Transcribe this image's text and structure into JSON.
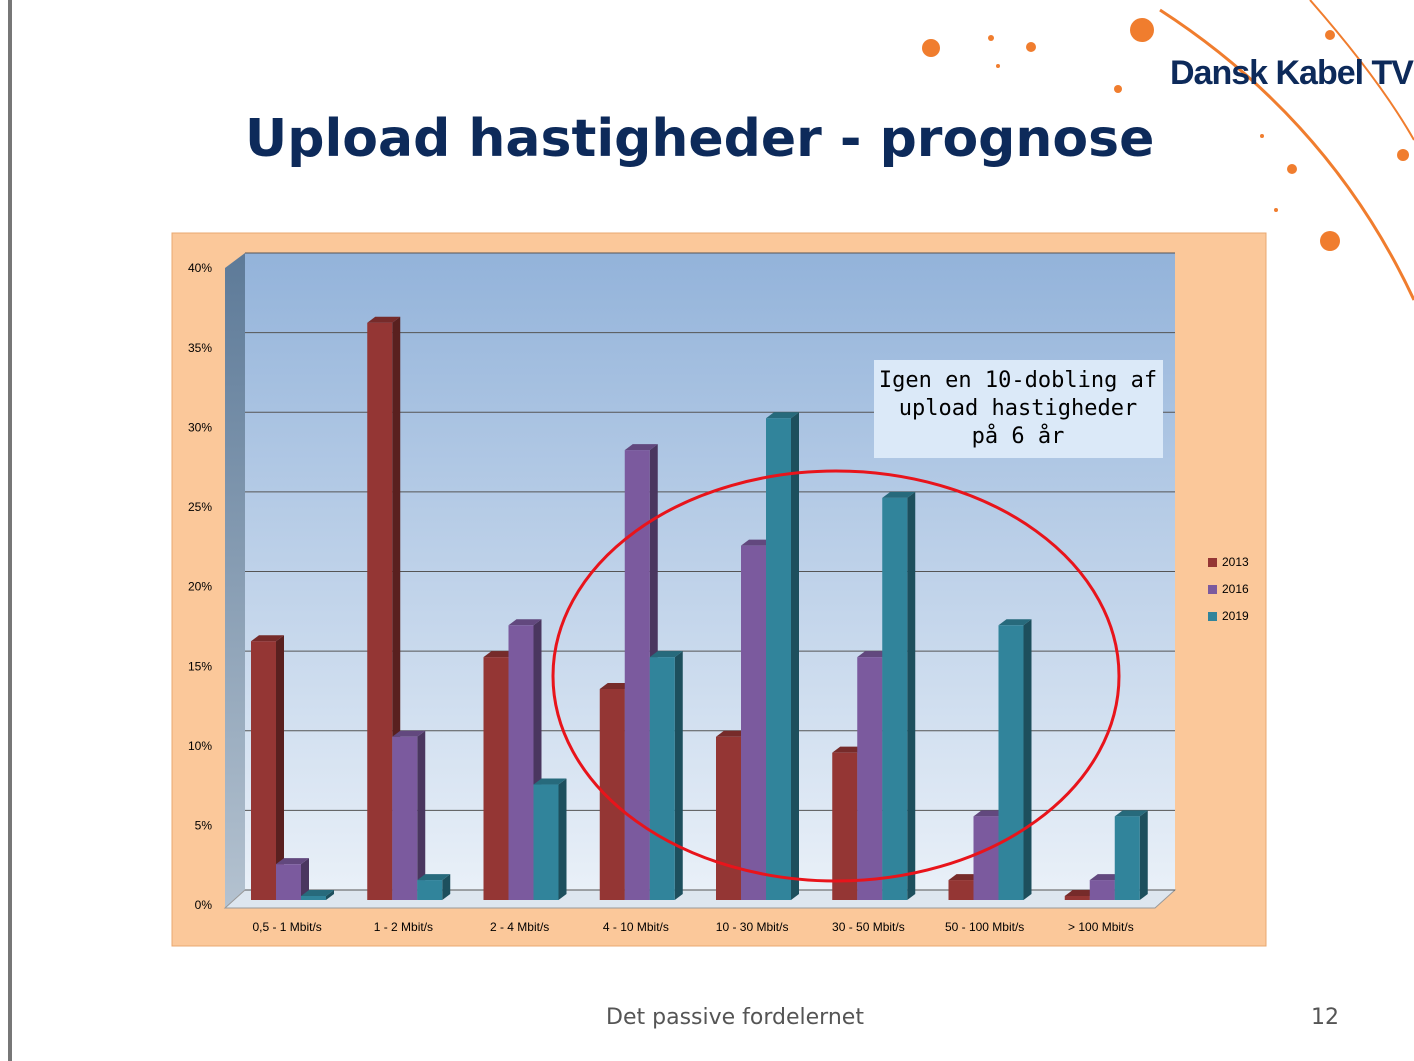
{
  "brand": "Dansk Kabel TV",
  "footer": {
    "text": "Det passive fordelernet",
    "page": "12"
  },
  "chart_data": {
    "type": "bar",
    "title": "Upload hastigheder - prognose",
    "annotation": [
      "Igen en 10-dobling af",
      "upload hastigheder",
      "på 6 år"
    ],
    "categories": [
      "0,5 - 1 Mbit/s",
      "1 - 2 Mbit/s",
      "2 - 4 Mbit/s",
      "4 - 10 Mbit/s",
      "10 - 30 Mbit/s",
      "30 - 50 Mbit/s",
      "50 - 100 Mbit/s",
      "> 100 Mbit/s"
    ],
    "series": [
      {
        "name": "2013",
        "color": "#943634",
        "values": [
          16,
          36,
          15,
          13,
          10,
          9,
          1,
          0
        ]
      },
      {
        "name": "2016",
        "color": "#7b5a9e",
        "values": [
          2,
          10,
          17,
          28,
          22,
          15,
          5,
          1
        ]
      },
      {
        "name": "2019",
        "color": "#31849b",
        "values": [
          0,
          1,
          7,
          15,
          30,
          25,
          17,
          5
        ]
      }
    ],
    "ylim": [
      0,
      40
    ],
    "yticks": [
      {
        "value": 0,
        "label": "0%"
      },
      {
        "value": 5,
        "label": "5%"
      },
      {
        "value": 10,
        "label": "10%"
      },
      {
        "value": 15,
        "label": "15%"
      },
      {
        "value": 20,
        "label": "20%"
      },
      {
        "value": 25,
        "label": "25%"
      },
      {
        "value": 30,
        "label": "30%"
      },
      {
        "value": 35,
        "label": "35%"
      },
      {
        "value": 40,
        "label": "40%"
      }
    ],
    "grid": true,
    "legend": "right"
  }
}
